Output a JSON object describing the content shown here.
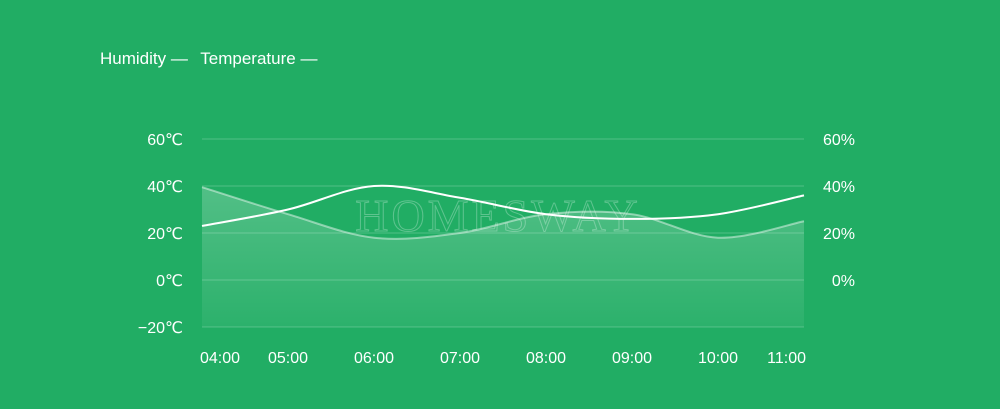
{
  "chart_data": {
    "type": "line",
    "legend": {
      "items": [
        "Humidity —",
        "Temperature —"
      ],
      "placement": "top-left"
    },
    "x": [
      "04:00",
      "05:00",
      "06:00",
      "07:00",
      "08:00",
      "09:00",
      "10:00",
      "11:00"
    ],
    "y_left": {
      "ticks": [
        "60℃",
        "40℃",
        "20℃",
        "0℃",
        "−20℃"
      ],
      "ylim": [
        -20,
        60
      ]
    },
    "y_right": {
      "ticks": [
        "60%",
        "40%",
        "20%",
        "0%"
      ]
    },
    "grid": true,
    "series": [
      {
        "name": "Temperature",
        "axis": "left",
        "style": "line",
        "values": [
          23,
          30,
          40,
          35,
          28,
          26,
          28,
          36
        ]
      },
      {
        "name": "Humidity",
        "axis": "right",
        "style": "area",
        "values": [
          39.5,
          28,
          18,
          20,
          28,
          28,
          18,
          25
        ]
      }
    ],
    "watermark": "HOMESWAY",
    "colors": {
      "background": "#21ad64",
      "line": "#ffffff"
    }
  }
}
